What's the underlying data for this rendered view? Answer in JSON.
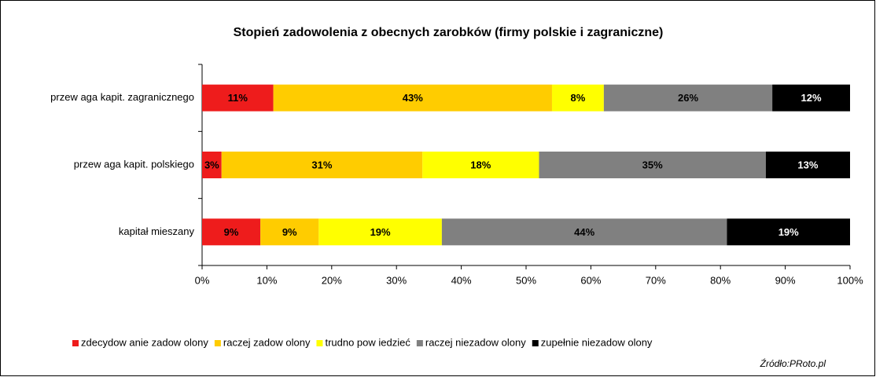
{
  "chart_data": {
    "type": "stacked-barh",
    "title": "Stopień zadowolenia z obecnych zarobków (firmy polskie i zagraniczne)",
    "categories": [
      "przew aga kapit. zagranicznego",
      "przew aga kapit. polskiego",
      "kapitał mieszany"
    ],
    "series": [
      {
        "name": "zdecydow anie zadow olony",
        "color": "#ee1c1c",
        "values": [
          11,
          3,
          9
        ],
        "value_labels": [
          "11%",
          "3%",
          "9%"
        ]
      },
      {
        "name": "raczej zadow olony",
        "color": "#ffcc00",
        "values": [
          43,
          31,
          9
        ],
        "value_labels": [
          "43%",
          "31%",
          "9%"
        ]
      },
      {
        "name": "trudno pow iedzieć",
        "color": "#ffff00",
        "values": [
          8,
          18,
          19
        ],
        "value_labels": [
          "8%",
          "18%",
          "19%"
        ]
      },
      {
        "name": "raczej niezadow olony",
        "color": "#808080",
        "values": [
          26,
          35,
          44
        ],
        "value_labels": [
          "26%",
          "35%",
          "44%"
        ]
      },
      {
        "name": "zupełnie niezadow olony",
        "color": "#000000",
        "values": [
          12,
          13,
          19
        ],
        "value_labels": [
          "12%",
          "13%",
          "19%"
        ]
      }
    ],
    "xlim": [
      0,
      100
    ],
    "xticks": [
      {
        "value": 0,
        "label": "0%"
      },
      {
        "value": 10,
        "label": "10%"
      },
      {
        "value": 20,
        "label": "20%"
      },
      {
        "value": 30,
        "label": "30%"
      },
      {
        "value": 40,
        "label": "40%"
      },
      {
        "value": 50,
        "label": "50%"
      },
      {
        "value": 60,
        "label": "60%"
      },
      {
        "value": 70,
        "label": "70%"
      },
      {
        "value": 80,
        "label": "80%"
      },
      {
        "value": 90,
        "label": "90%"
      },
      {
        "value": 100,
        "label": "100%"
      }
    ],
    "legend": "bottom",
    "source": "Źródło:PRoto.pl"
  }
}
